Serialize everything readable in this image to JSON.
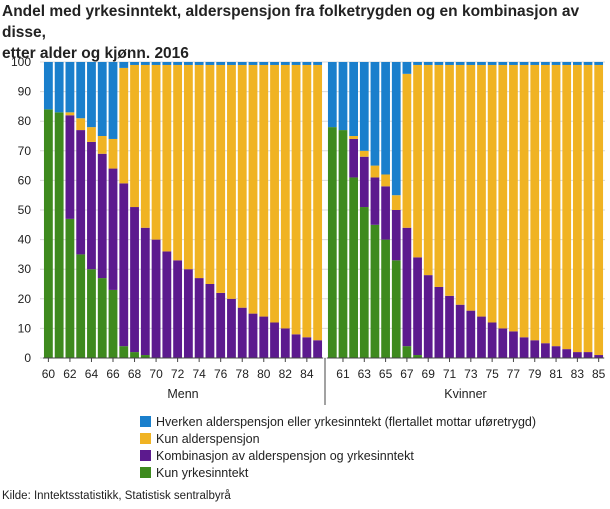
{
  "title_lines": [
    "Andel med yrkesinntekt, alderspensjon fra folketrygden og en kombinasjon av disse,",
    "etter alder og kjønn. 2016"
  ],
  "source": "Kilde: Inntektsstatistikk,  Statistisk sentralbyrå",
  "colors": {
    "neither": "#1a7fcc",
    "pension_only": "#f0b323",
    "combination": "#5c1a8e",
    "income_only": "#3e8a1e",
    "grid": "#d8d8d8",
    "axis": "#444444"
  },
  "legend": [
    {
      "key": "neither",
      "label": "Hverken alderspensjon eller yrkesinntekt (flertallet mottar uføretrygd)"
    },
    {
      "key": "pension_only",
      "label": "Kun alderspensjon"
    },
    {
      "key": "combination",
      "label": "Kombinasjon av alderspensjon og yrkesinntekt"
    },
    {
      "key": "income_only",
      "label": "Kun yrkesinntekt"
    }
  ],
  "chart_data": {
    "type": "bar",
    "stacked": true,
    "ylim": [
      0,
      100
    ],
    "yticks": [
      0,
      10,
      20,
      30,
      40,
      50,
      60,
      70,
      80,
      90,
      100
    ],
    "series_order": [
      "income_only",
      "combination",
      "pension_only",
      "neither"
    ],
    "panels": [
      {
        "name": "Menn",
        "ages": [
          60,
          61,
          62,
          63,
          64,
          65,
          66,
          67,
          68,
          69,
          70,
          71,
          72,
          73,
          74,
          75,
          76,
          77,
          78,
          79,
          80,
          81,
          82,
          83,
          84,
          85
        ],
        "tick_labels": [
          "60",
          "62",
          "64",
          "66",
          "68",
          "70",
          "72",
          "74",
          "76",
          "78",
          "80",
          "82",
          "84"
        ],
        "series": {
          "income_only": [
            84,
            83,
            47,
            35,
            30,
            27,
            23,
            4,
            2,
            1,
            0,
            0,
            0,
            0,
            0,
            0,
            0,
            0,
            0,
            0,
            0,
            0,
            0,
            0,
            0,
            0
          ],
          "combination": [
            0,
            0,
            35,
            42,
            43,
            42,
            41,
            55,
            49,
            43,
            40,
            36,
            33,
            30,
            27,
            25,
            22,
            20,
            17,
            15,
            14,
            12,
            10,
            8,
            7,
            6
          ],
          "pension_only": [
            0,
            0,
            1,
            4,
            5,
            6,
            10,
            39,
            48,
            55,
            59,
            63,
            66,
            69,
            72,
            74,
            77,
            79,
            82,
            84,
            85,
            87,
            89,
            91,
            92,
            93
          ],
          "neither": [
            16,
            17,
            17,
            19,
            22,
            25,
            26,
            2,
            1,
            1,
            1,
            1,
            1,
            1,
            1,
            1,
            1,
            1,
            1,
            1,
            1,
            1,
            1,
            1,
            1,
            1
          ]
        }
      },
      {
        "name": "Kvinner",
        "ages": [
          60,
          61,
          62,
          63,
          64,
          65,
          66,
          67,
          68,
          69,
          70,
          71,
          72,
          73,
          74,
          75,
          76,
          77,
          78,
          79,
          80,
          81,
          82,
          83,
          84,
          85
        ],
        "tick_labels": [
          "61",
          "63",
          "65",
          "67",
          "69",
          "71",
          "73",
          "75",
          "77",
          "79",
          "81",
          "83",
          "85"
        ],
        "series": {
          "income_only": [
            78,
            77,
            61,
            51,
            45,
            40,
            33,
            4,
            1,
            0,
            0,
            0,
            0,
            0,
            0,
            0,
            0,
            0,
            0,
            0,
            0,
            0,
            0,
            0,
            0,
            0
          ],
          "combination": [
            0,
            0,
            13,
            17,
            16,
            18,
            17,
            40,
            33,
            28,
            24,
            21,
            18,
            16,
            14,
            12,
            10,
            9,
            7,
            6,
            5,
            4,
            3,
            2,
            2,
            1
          ],
          "pension_only": [
            0,
            0,
            1,
            2,
            4,
            4,
            5,
            52,
            65,
            71,
            75,
            78,
            81,
            83,
            85,
            87,
            89,
            90,
            92,
            93,
            94,
            95,
            96,
            97,
            97,
            98
          ],
          "neither": [
            22,
            23,
            25,
            30,
            35,
            38,
            45,
            4,
            1,
            1,
            1,
            1,
            1,
            1,
            1,
            1,
            1,
            1,
            1,
            1,
            1,
            1,
            1,
            1,
            1,
            1
          ]
        }
      }
    ]
  }
}
